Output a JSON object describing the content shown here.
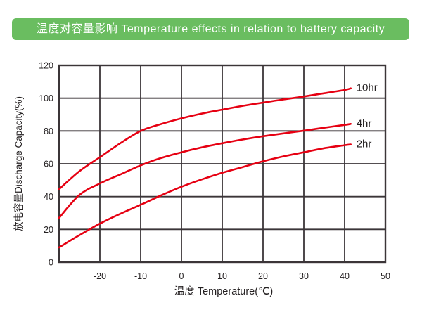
{
  "header": {
    "title": "温度对容量影响 Temperature effects in relation to battery capacity",
    "bg_color": "#6abd60",
    "text_color": "#ffffff"
  },
  "chart_data": {
    "type": "line",
    "title": "",
    "xlabel": "温度 Temperature(℃)",
    "ylabel": "放电容量Discharge Capacity(%)",
    "xlim": [
      -30,
      50
    ],
    "ylim": [
      0,
      120
    ],
    "x_ticks": [
      "-20",
      "-10",
      "0",
      "10",
      "20",
      "30",
      "40",
      "50"
    ],
    "x_tick_values": [
      -20,
      -10,
      0,
      10,
      20,
      30,
      40,
      50
    ],
    "y_ticks": [
      "0",
      "20",
      "40",
      "60",
      "80",
      "100",
      "120"
    ],
    "y_tick_values": [
      0,
      20,
      40,
      60,
      80,
      100,
      120
    ],
    "grid": true,
    "legend_position": "end-of-line",
    "line_color": "#e60012",
    "axis_color": "#3b3538",
    "text_color": "#231f20",
    "x": [
      -30,
      -25,
      -20,
      -15,
      -10,
      -5,
      0,
      5,
      10,
      15,
      20,
      25,
      30,
      35,
      40,
      41.5
    ],
    "series": [
      {
        "name": "10hr",
        "values": [
          44.5,
          55.5,
          64,
          72.5,
          80,
          84.2,
          87.7,
          90.6,
          93,
          95.3,
          97.3,
          99.2,
          101,
          103,
          105,
          106
        ]
      },
      {
        "name": "4hr",
        "values": [
          27,
          41,
          48,
          53.5,
          59,
          63.5,
          67,
          70,
          72.5,
          74.8,
          76.8,
          78.5,
          80.2,
          82,
          83.7,
          84.3
        ]
      },
      {
        "name": "2hr",
        "values": [
          9,
          16.5,
          23.5,
          29.5,
          35,
          40.7,
          46,
          50.5,
          54.5,
          58,
          61.5,
          64.5,
          67,
          69.5,
          71.3,
          71.8
        ]
      }
    ]
  }
}
